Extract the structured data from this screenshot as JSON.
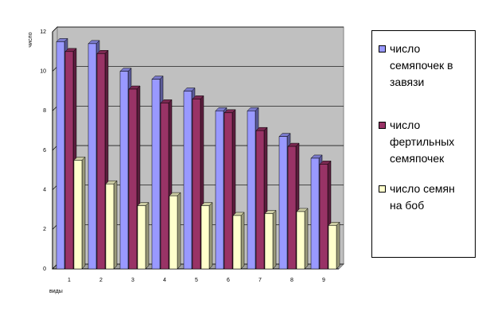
{
  "chart_data": {
    "type": "bar",
    "y_label": "число",
    "x_label": "виды",
    "categories": [
      "1",
      "2",
      "3",
      "4",
      "5",
      "6",
      "7",
      "8",
      "9"
    ],
    "series": [
      {
        "name": "число семяпочек в завязи",
        "color": "#9999ff",
        "values": [
          11.5,
          11.4,
          10.0,
          9.6,
          9.0,
          8.0,
          8.0,
          6.7,
          5.6
        ]
      },
      {
        "name": "число фертильных семяпочек",
        "color": "#993366",
        "values": [
          11.0,
          10.9,
          9.1,
          8.4,
          8.6,
          7.9,
          7.0,
          6.2,
          5.3
        ]
      },
      {
        "name": "число семян на боб",
        "color": "#ffffcc",
        "values": [
          5.5,
          4.3,
          3.2,
          3.7,
          3.2,
          2.7,
          2.8,
          2.9,
          2.2
        ]
      }
    ],
    "ylim": [
      0,
      12
    ],
    "yticks": [
      0,
      2,
      4,
      6,
      8,
      10,
      12
    ],
    "grid": true,
    "legend": "right"
  }
}
